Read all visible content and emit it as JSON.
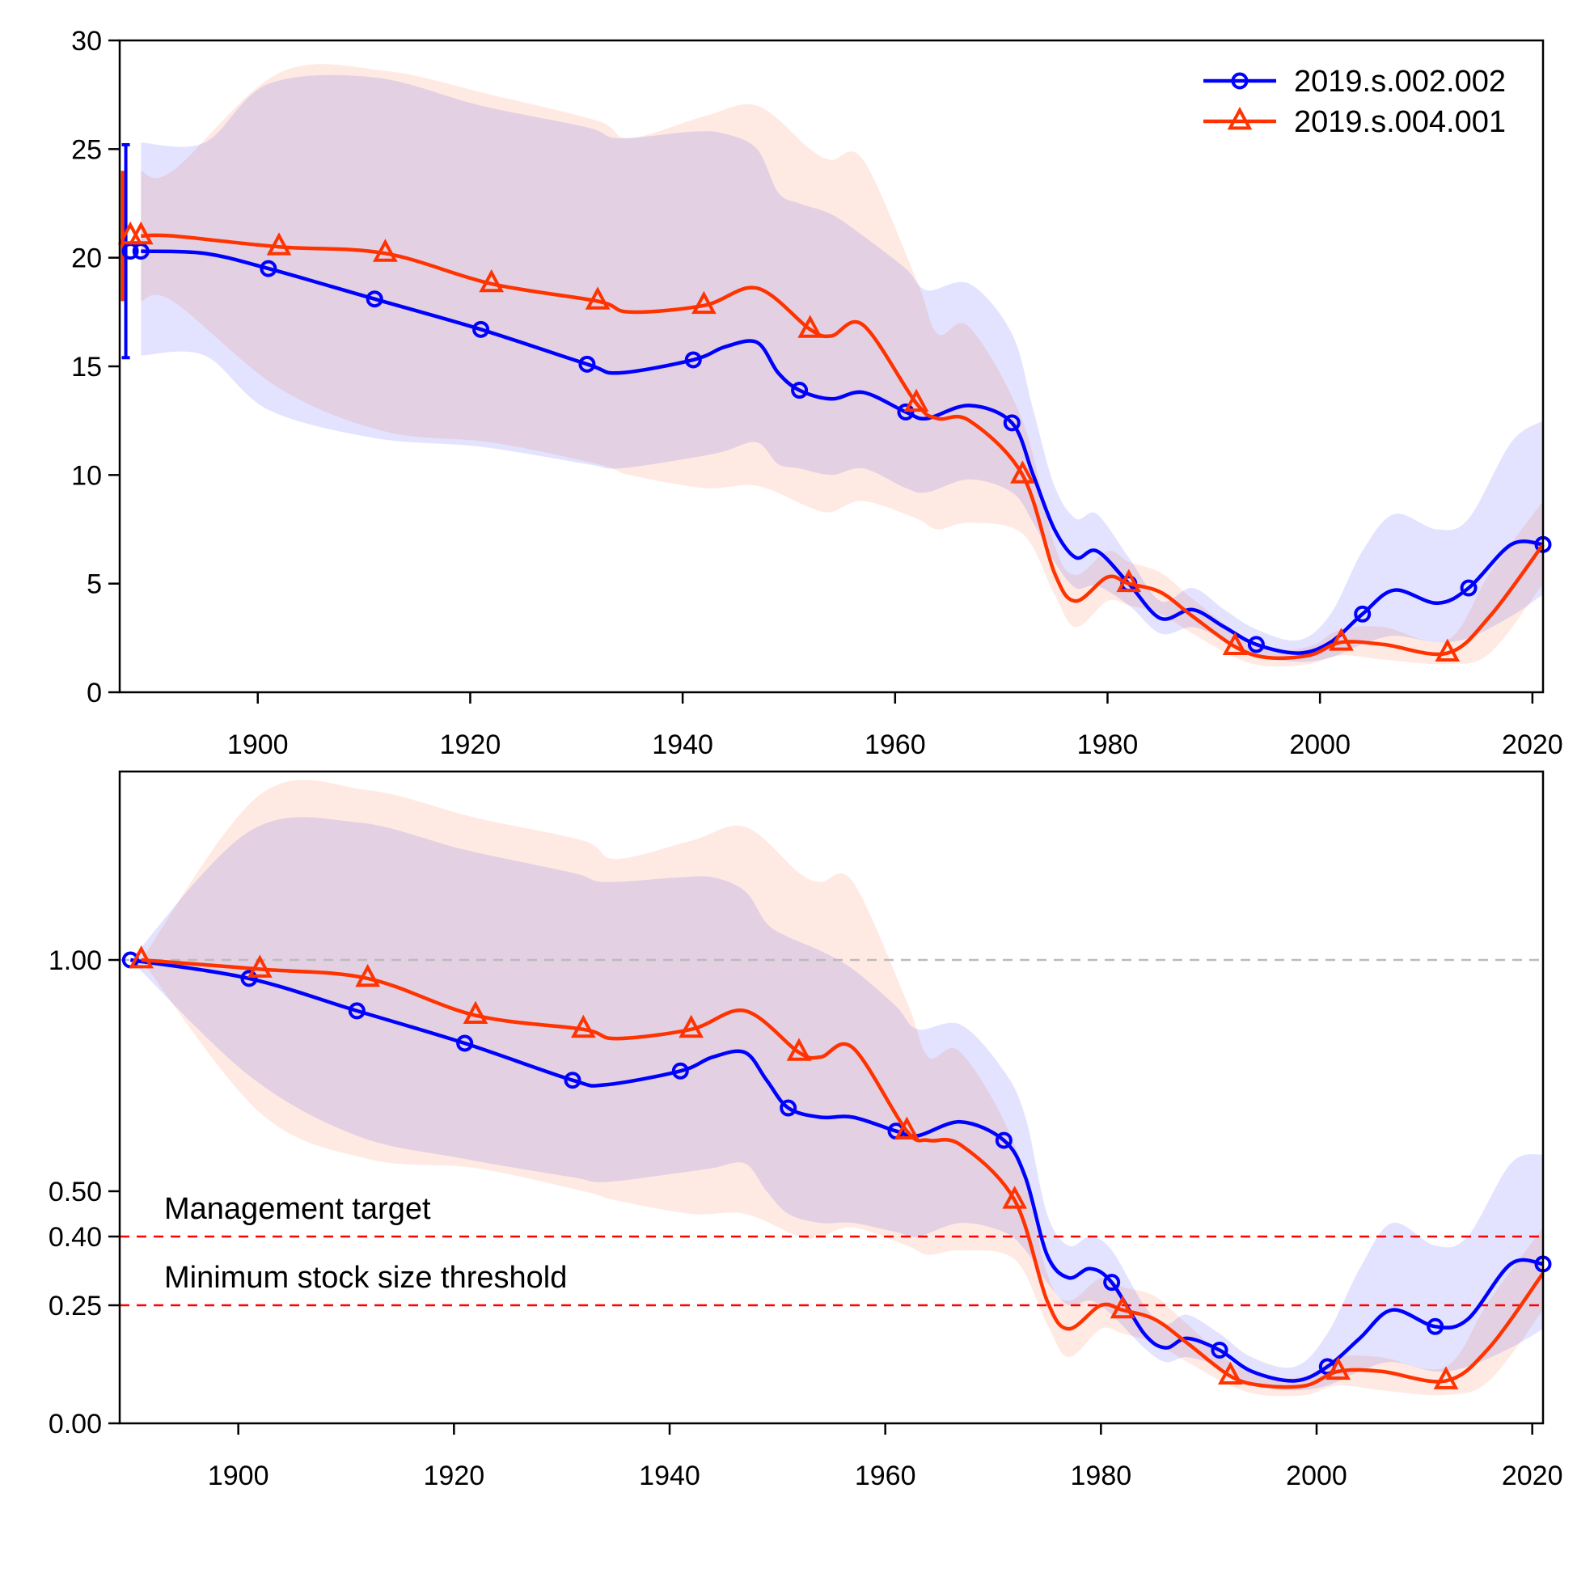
{
  "chart_data": [
    {
      "type": "line",
      "title": "",
      "xlabel": "",
      "ylabel": "",
      "xlim": [
        1887,
        2021
      ],
      "ylim": [
        0,
        30
      ],
      "y_ticks": [
        "0",
        "5",
        "10",
        "15",
        "20",
        "25",
        "30"
      ],
      "x_ticks": [
        "1900",
        "1920",
        "1940",
        "1960",
        "1980",
        "2000",
        "2020"
      ],
      "legend": {
        "placement": "top-right",
        "entries": [
          {
            "label": "2019.s.002.002",
            "color": "#0000ff",
            "marker": "circle"
          },
          {
            "label": "2019.s.004.001",
            "color": "#ff3300",
            "marker": "triangle"
          }
        ]
      },
      "initial_errorbar": {
        "x": 1887.5,
        "series": "2019.s.002.002",
        "low": 15.4,
        "high": 25.2,
        "color": "#0000ff"
      },
      "initial_errorbar_2": {
        "x": 1887.5,
        "series": "2019.s.004.001",
        "low": 18.0,
        "high": 24.0,
        "color": "#ff3300"
      },
      "series": [
        {
          "name": "2019.s.002.002",
          "color": "#0000ff",
          "band_color": "#ccccff",
          "initial_point": {
            "x": 1888,
            "y": 20.3
          },
          "x": [
            1889,
            1895,
            1901,
            1911,
            1921,
            1931,
            1934,
            1941,
            1944,
            1947,
            1949,
            1951,
            1954,
            1957,
            1961,
            1963,
            1967,
            1971,
            1973,
            1975,
            1977,
            1979,
            1982,
            1985,
            1988,
            1991,
            1994,
            1998,
            2001,
            2004,
            2007,
            2011,
            2014,
            2018,
            2021
          ],
          "y": [
            20.3,
            20.2,
            19.5,
            18.1,
            16.7,
            15.1,
            14.7,
            15.3,
            15.9,
            16.1,
            14.7,
            13.9,
            13.5,
            13.8,
            12.9,
            12.6,
            13.2,
            12.4,
            10.0,
            7.5,
            6.2,
            6.5,
            5.0,
            3.4,
            3.8,
            3.0,
            2.2,
            1.8,
            2.3,
            3.6,
            4.7,
            4.1,
            4.8,
            6.8,
            6.8
          ],
          "low": [
            15.5,
            15.5,
            13.0,
            11.7,
            11.3,
            10.5,
            10.3,
            10.8,
            11.1,
            11.5,
            10.5,
            10.3,
            10.0,
            10.3,
            9.4,
            9.2,
            9.8,
            9.2,
            7.8,
            6.0,
            4.8,
            4.9,
            4.0,
            2.7,
            3.0,
            2.4,
            1.7,
            1.4,
            1.6,
            2.2,
            2.6,
            2.3,
            2.5,
            3.5,
            4.5
          ],
          "high": [
            25.3,
            25.3,
            28.0,
            28.3,
            27.0,
            26.0,
            25.5,
            25.8,
            25.7,
            25.0,
            23.0,
            22.5,
            22.0,
            21.0,
            19.5,
            18.5,
            18.8,
            16.5,
            13.0,
            9.5,
            8.0,
            8.2,
            6.2,
            4.2,
            4.8,
            3.8,
            2.9,
            2.4,
            3.6,
            6.5,
            8.2,
            7.5,
            8.0,
            11.5,
            12.5
          ]
        },
        {
          "name": "2019.s.004.001",
          "color": "#ff3300",
          "band_color": "#ffd9cc",
          "initial_point": {
            "x": 1888,
            "y": 21.0
          },
          "x": [
            1889,
            1892,
            1902,
            1912,
            1922,
            1932,
            1935,
            1942,
            1947,
            1952,
            1954,
            1957,
            1962,
            1964,
            1967,
            1972,
            1975,
            1977,
            1980,
            1982,
            1985,
            1988,
            1992,
            1995,
            1999,
            2002,
            2006,
            2012,
            2016,
            2021
          ],
          "y": [
            21.0,
            21.0,
            20.5,
            20.2,
            18.8,
            18.0,
            17.5,
            17.8,
            18.6,
            16.7,
            16.4,
            16.9,
            13.3,
            12.6,
            12.5,
            10.0,
            5.5,
            4.2,
            5.3,
            5.0,
            4.6,
            3.5,
            2.1,
            1.6,
            1.7,
            2.3,
            2.2,
            1.8,
            3.5,
            6.8
          ],
          "low": [
            18.0,
            18.0,
            14.0,
            12.0,
            11.5,
            10.5,
            10.0,
            9.4,
            9.5,
            8.5,
            8.3,
            8.8,
            8.0,
            7.5,
            7.8,
            7.3,
            4.5,
            3.0,
            4.2,
            4.0,
            3.6,
            2.7,
            1.6,
            1.2,
            1.3,
            1.7,
            1.5,
            1.3,
            1.8,
            5.0
          ],
          "high": [
            24.0,
            24.0,
            28.5,
            28.6,
            27.5,
            26.3,
            25.5,
            26.5,
            27.0,
            25.0,
            24.5,
            24.5,
            19.0,
            16.5,
            16.8,
            12.5,
            6.8,
            5.4,
            6.5,
            6.0,
            5.5,
            4.3,
            2.8,
            2.0,
            2.1,
            2.9,
            3.0,
            2.4,
            5.5,
            8.8
          ]
        }
      ]
    },
    {
      "type": "line",
      "title": "",
      "xlabel": "",
      "ylabel": "",
      "xlim": [
        1889,
        2021
      ],
      "y_ticks": [
        "0.00",
        "0.25",
        "0.40",
        "0.50",
        "1.00"
      ],
      "x_ticks": [
        "1900",
        "1920",
        "1940",
        "1960",
        "1980",
        "2000",
        "2020"
      ],
      "reference_lines": [
        {
          "y": 1.0,
          "style": "dashed",
          "color": "#bbbbbb",
          "label": ""
        },
        {
          "y": 0.4,
          "style": "dashed",
          "color": "#ff0000",
          "label": "Management target"
        },
        {
          "y": 0.25,
          "style": "dashed",
          "color": "#ff0000",
          "label": "Minimum stock size threshold"
        }
      ],
      "series": [
        {
          "name": "2019.s.002.002",
          "color": "#0000ff",
          "band_color": "#ccccff",
          "x": [
            1890,
            1901,
            1911,
            1921,
            1931,
            1934,
            1941,
            1944,
            1947,
            1949,
            1951,
            1954,
            1957,
            1961,
            1963,
            1967,
            1971,
            1973,
            1975,
            1977,
            1979,
            1981,
            1984,
            1986,
            1988,
            1991,
            1994,
            1998,
            2001,
            2004,
            2007,
            2011,
            2014,
            2018,
            2021
          ],
          "y": [
            1.0,
            0.96,
            0.89,
            0.82,
            0.74,
            0.73,
            0.76,
            0.79,
            0.8,
            0.74,
            0.68,
            0.66,
            0.66,
            0.63,
            0.62,
            0.65,
            0.61,
            0.53,
            0.36,
            0.31,
            0.33,
            0.3,
            0.19,
            0.16,
            0.18,
            0.155,
            0.11,
            0.09,
            0.12,
            0.18,
            0.24,
            0.205,
            0.22,
            0.34,
            0.34
          ],
          "low": [
            1.0,
            0.75,
            0.62,
            0.57,
            0.53,
            0.52,
            0.54,
            0.55,
            0.56,
            0.5,
            0.45,
            0.43,
            0.43,
            0.41,
            0.4,
            0.43,
            0.41,
            0.37,
            0.3,
            0.25,
            0.26,
            0.23,
            0.16,
            0.13,
            0.14,
            0.12,
            0.08,
            0.07,
            0.08,
            0.11,
            0.13,
            0.11,
            0.12,
            0.16,
            0.2
          ],
          "high": [
            1.0,
            1.28,
            1.3,
            1.24,
            1.19,
            1.17,
            1.18,
            1.18,
            1.15,
            1.08,
            1.05,
            1.02,
            0.98,
            0.9,
            0.85,
            0.86,
            0.76,
            0.66,
            0.45,
            0.38,
            0.4,
            0.37,
            0.25,
            0.21,
            0.23,
            0.19,
            0.14,
            0.12,
            0.19,
            0.33,
            0.43,
            0.38,
            0.4,
            0.56,
            0.58
          ]
        },
        {
          "name": "2019.s.004.001",
          "color": "#ff3300",
          "band_color": "#ffd9cc",
          "x": [
            1891,
            1902,
            1912,
            1922,
            1932,
            1935,
            1942,
            1947,
            1952,
            1954,
            1957,
            1962,
            1964,
            1967,
            1972,
            1975,
            1977,
            1980,
            1982,
            1985,
            1988,
            1992,
            1995,
            1999,
            2002,
            2006,
            2012,
            2016,
            2021
          ],
          "y": [
            1.0,
            0.98,
            0.96,
            0.88,
            0.85,
            0.83,
            0.85,
            0.89,
            0.8,
            0.79,
            0.81,
            0.63,
            0.61,
            0.6,
            0.48,
            0.26,
            0.2,
            0.25,
            0.24,
            0.22,
            0.17,
            0.1,
            0.08,
            0.08,
            0.11,
            0.11,
            0.09,
            0.16,
            0.32
          ],
          "low": [
            1.0,
            0.67,
            0.57,
            0.55,
            0.5,
            0.48,
            0.45,
            0.45,
            0.4,
            0.4,
            0.42,
            0.38,
            0.36,
            0.37,
            0.35,
            0.21,
            0.14,
            0.2,
            0.19,
            0.17,
            0.13,
            0.08,
            0.06,
            0.06,
            0.08,
            0.07,
            0.06,
            0.09,
            0.24
          ],
          "high": [
            1.0,
            1.36,
            1.37,
            1.31,
            1.26,
            1.22,
            1.26,
            1.29,
            1.19,
            1.17,
            1.17,
            0.91,
            0.79,
            0.8,
            0.6,
            0.32,
            0.26,
            0.31,
            0.29,
            0.27,
            0.21,
            0.13,
            0.1,
            0.1,
            0.14,
            0.14,
            0.12,
            0.26,
            0.42
          ]
        }
      ]
    }
  ]
}
